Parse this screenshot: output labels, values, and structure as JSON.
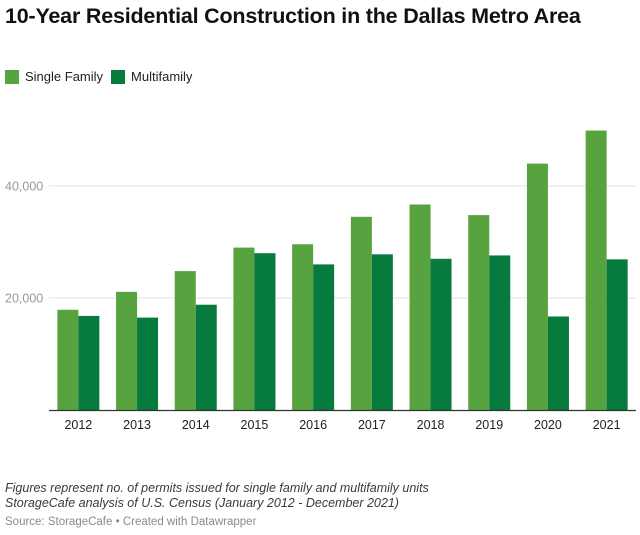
{
  "title": "10-Year Residential Construction in the Dallas Metro Area",
  "legend": [
    {
      "label": "Single Family",
      "color": "#57a340"
    },
    {
      "label": "Multifamily",
      "color": "#077a3d"
    }
  ],
  "chart_data": {
    "type": "bar",
    "title": "10-Year Residential Construction in the Dallas Metro Area",
    "xlabel": "",
    "ylabel": "",
    "categories": [
      "2012",
      "2013",
      "2014",
      "2015",
      "2016",
      "2017",
      "2018",
      "2019",
      "2020",
      "2021"
    ],
    "series": [
      {
        "name": "Single Family",
        "color": "#57a340",
        "values": [
          17900,
          21100,
          24800,
          29000,
          29600,
          34500,
          36700,
          34800,
          44000,
          49900
        ]
      },
      {
        "name": "Multifamily",
        "color": "#077a3d",
        "values": [
          16800,
          16500,
          18800,
          28000,
          26000,
          27800,
          27000,
          27600,
          16700,
          26900
        ]
      }
    ],
    "yticks": [
      {
        "value": 20000,
        "label": "20,000"
      },
      {
        "value": 40000,
        "label": "40,000"
      }
    ],
    "ylim": [
      0,
      50000
    ],
    "grid": true,
    "legend_position": "top-left"
  },
  "notes": [
    "Figures represent no. of permits issued for single family and multifamily units",
    "StorageCafe analysis of U.S. Census (January 2012 - December 2021)"
  ],
  "source": "Source: StorageCafe • Created with Datawrapper"
}
